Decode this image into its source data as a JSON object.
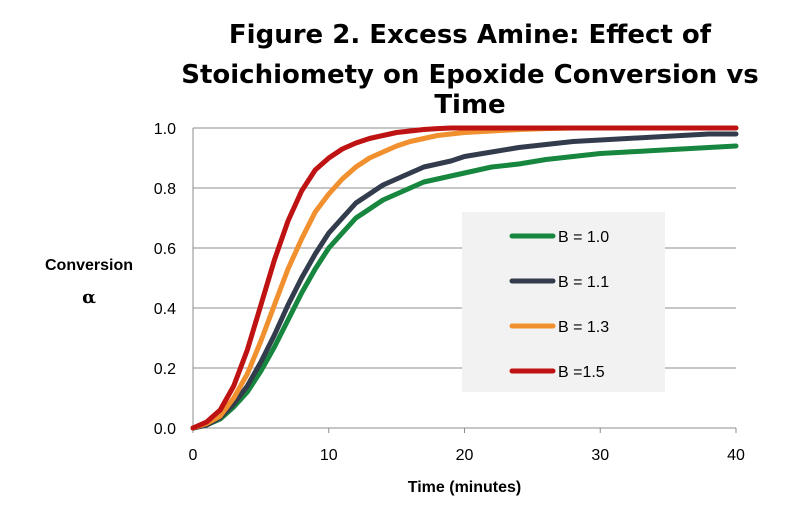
{
  "chart_data": {
    "type": "line",
    "title_line1": "Figure 2. Excess Amine: Effect of",
    "title_line2": "Stoichiomety on Epoxide Conversion vs Time",
    "xlabel": "Time (minutes)",
    "ylabel_line1": "Conversion",
    "ylabel_line2": "α",
    "xlim": [
      0,
      40
    ],
    "ylim": [
      0,
      1.0
    ],
    "x_ticks": [
      "0",
      "10",
      "20",
      "30",
      "40"
    ],
    "y_ticks": [
      "0.0",
      "0.2",
      "0.4",
      "0.6",
      "0.8",
      "1.0"
    ],
    "grid": "horizontal",
    "legend_position": "right-center",
    "x": [
      0,
      1,
      2,
      3,
      4,
      5,
      6,
      7,
      8,
      9,
      10,
      11,
      12,
      13,
      14,
      15,
      16,
      17,
      18,
      19,
      20,
      22,
      24,
      26,
      28,
      30,
      32,
      34,
      36,
      38,
      40
    ],
    "series": [
      {
        "name": "B = 1.0",
        "color": "#17873f",
        "values": [
          0,
          0.01,
          0.03,
          0.07,
          0.12,
          0.19,
          0.27,
          0.36,
          0.45,
          0.53,
          0.6,
          0.65,
          0.7,
          0.73,
          0.76,
          0.78,
          0.8,
          0.82,
          0.83,
          0.84,
          0.85,
          0.87,
          0.88,
          0.895,
          0.905,
          0.915,
          0.92,
          0.925,
          0.93,
          0.935,
          0.94
        ]
      },
      {
        "name": "B = 1.1",
        "color": "#333c4c",
        "values": [
          0,
          0.01,
          0.035,
          0.08,
          0.14,
          0.22,
          0.31,
          0.41,
          0.5,
          0.58,
          0.65,
          0.7,
          0.75,
          0.78,
          0.81,
          0.83,
          0.85,
          0.87,
          0.88,
          0.89,
          0.905,
          0.92,
          0.935,
          0.945,
          0.955,
          0.96,
          0.965,
          0.97,
          0.975,
          0.98,
          0.98
        ]
      },
      {
        "name": "B = 1.3",
        "color": "#f0902f",
        "values": [
          0,
          0.015,
          0.04,
          0.1,
          0.18,
          0.29,
          0.41,
          0.53,
          0.63,
          0.72,
          0.78,
          0.83,
          0.87,
          0.9,
          0.92,
          0.94,
          0.955,
          0.965,
          0.975,
          0.98,
          0.985,
          0.99,
          0.995,
          0.998,
          1.0,
          1.0,
          1.0,
          1.0,
          1.0,
          1.0,
          1.0
        ]
      },
      {
        "name": "B =1.5",
        "color": "#bf1212",
        "values": [
          0,
          0.02,
          0.06,
          0.14,
          0.26,
          0.41,
          0.56,
          0.69,
          0.79,
          0.86,
          0.9,
          0.93,
          0.95,
          0.965,
          0.975,
          0.985,
          0.99,
          0.995,
          0.998,
          1.0,
          1.0,
          1.0,
          1.0,
          1.0,
          1.0,
          1.0,
          1.0,
          1.0,
          1.0,
          1.0,
          1.0
        ]
      }
    ]
  }
}
